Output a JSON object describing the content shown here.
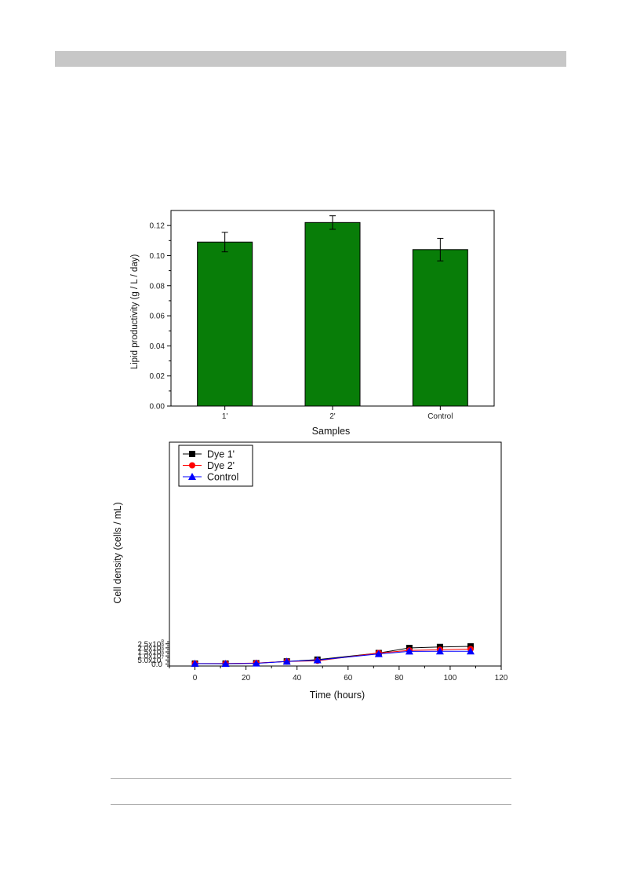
{
  "colors": {
    "header_bar": "#c7c7c7",
    "bar_fill": "#087d08",
    "dye1": "#000000",
    "dye2": "#ff0000",
    "control": "#0000ff"
  },
  "chart_data": [
    {
      "type": "bar",
      "xlabel": "Samples",
      "ylabel": "Lipid productivity (g / L / day)",
      "categories": [
        "1'",
        "2'",
        "Control"
      ],
      "values": [
        0.109,
        0.122,
        0.104
      ],
      "errors": [
        0.0065,
        0.0045,
        0.0075
      ],
      "ylim": [
        0,
        0.13
      ],
      "yticks": [
        0.0,
        0.02,
        0.04,
        0.06,
        0.08,
        0.1,
        0.12
      ],
      "ytick_labels": [
        "0.00",
        "0.02",
        "0.04",
        "0.06",
        "0.08",
        "0.10",
        "0.12"
      ],
      "grid": false
    },
    {
      "type": "line",
      "xlabel": "Time (hours)",
      "ylabel": "Cell density (cells / mL)",
      "xlim": [
        -10,
        120
      ],
      "ylim": [
        -25000000,
        2750000000
      ],
      "xticks": [
        0,
        20,
        40,
        60,
        80,
        100,
        120
      ],
      "yticks": [
        0,
        50000000,
        100000000,
        150000000,
        200000000,
        250000000
      ],
      "ytick_labels": [
        {
          "base": "0.0",
          "exp": ""
        },
        {
          "base": "5.0x10",
          "exp": "7"
        },
        {
          "base": "1.0x10",
          "exp": "8"
        },
        {
          "base": "1.5x10",
          "exp": "8"
        },
        {
          "base": "2.0x10",
          "exp": "8"
        },
        {
          "base": "2.5x10",
          "exp": "8"
        }
      ],
      "legend_position": "top-left",
      "x": [
        0,
        12,
        24,
        36,
        48,
        72,
        84,
        96,
        108
      ],
      "series": [
        {
          "name": "Dye 1'",
          "marker": "square",
          "color": "#000000",
          "values": [
            5000000,
            5000000,
            10000000,
            32000000,
            54000000,
            136000000,
            199000000,
            211000000,
            218000000
          ],
          "errors": [
            0,
            0,
            0,
            0,
            24000000,
            0,
            13000000,
            4000000,
            15000000
          ]
        },
        {
          "name": "Dye 2'",
          "marker": "circle",
          "color": "#ff0000",
          "values": [
            5000000,
            5000000,
            11000000,
            31000000,
            40000000,
            136000000,
            169000000,
            177000000,
            185000000
          ],
          "errors": [
            0,
            0,
            0,
            0,
            10000000,
            0,
            3000000,
            3000000,
            3000000
          ]
        },
        {
          "name": "Control",
          "marker": "triangle",
          "color": "#0000ff",
          "values": [
            5000000,
            3000000,
            8000000,
            31000000,
            48000000,
            125000000,
            156000000,
            158000000,
            158000000
          ],
          "errors": [
            0,
            0,
            0,
            0,
            0,
            9000000,
            13000000,
            3000000,
            0
          ]
        }
      ],
      "grid": false
    }
  ]
}
